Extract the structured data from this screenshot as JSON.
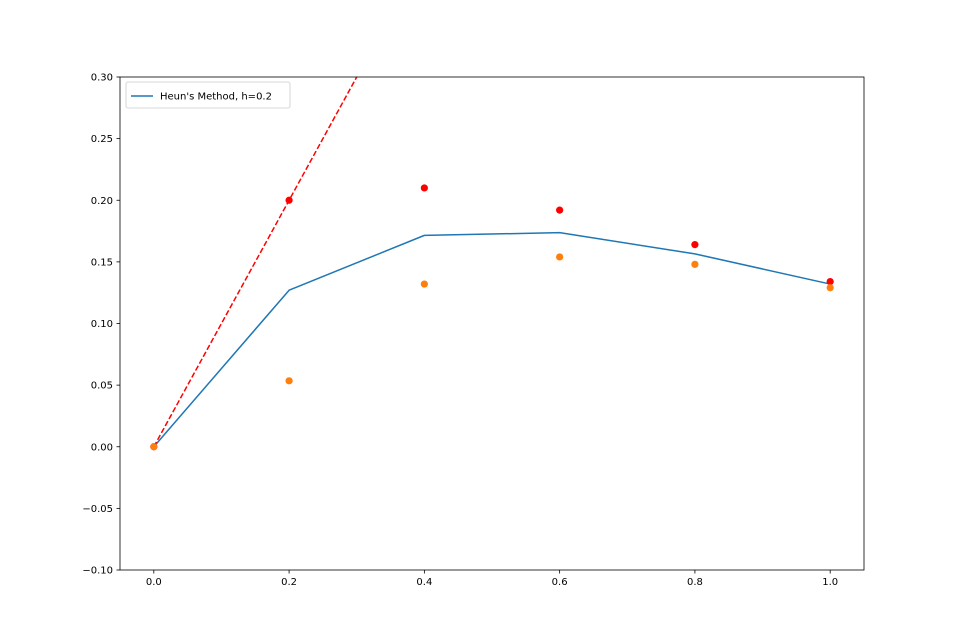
{
  "chart_data": {
    "type": "line",
    "title": "",
    "xlabel": "",
    "ylabel": "",
    "xlim": [
      -0.05,
      1.05
    ],
    "ylim": [
      -0.1,
      0.3
    ],
    "x_ticks": [
      0.0,
      0.2,
      0.4,
      0.6,
      0.8,
      1.0
    ],
    "x_tick_labels": [
      "0.0",
      "0.2",
      "0.4",
      "0.6",
      "0.8",
      "1.0"
    ],
    "y_ticks": [
      -0.1,
      -0.05,
      0.0,
      0.05,
      0.1,
      0.15,
      0.2,
      0.25,
      0.3
    ],
    "y_tick_labels": [
      "−0.10",
      "−0.05",
      "0.00",
      "0.05",
      "0.10",
      "0.15",
      "0.20",
      "0.25",
      "0.30"
    ],
    "grid": false,
    "legend_position": "upper-left",
    "series": [
      {
        "name": "Heun's Method, h=0.2",
        "kind": "line",
        "color": "#1f77b4",
        "x": [
          0.0,
          0.2,
          0.4,
          0.6,
          0.8,
          1.0
        ],
        "y": [
          0.0,
          0.127,
          0.1715,
          0.1737,
          0.1565,
          0.132
        ]
      },
      {
        "kind": "dashed-line",
        "color": "#ff0000",
        "x": [
          0.0,
          0.2,
          0.3
        ],
        "y": [
          0.0,
          0.2,
          0.3
        ]
      },
      {
        "kind": "scatter",
        "color": "#ff0000",
        "x": [
          0.0,
          0.2,
          0.4,
          0.6,
          0.8,
          1.0
        ],
        "y": [
          0.0,
          0.2,
          0.21,
          0.192,
          0.164,
          0.134
        ]
      },
      {
        "kind": "scatter",
        "color": "#ff7f0e",
        "x": [
          0.0,
          0.2,
          0.4,
          0.6,
          0.8,
          1.0
        ],
        "y": [
          0.0,
          0.0535,
          0.132,
          0.154,
          0.148,
          0.129
        ]
      }
    ]
  }
}
